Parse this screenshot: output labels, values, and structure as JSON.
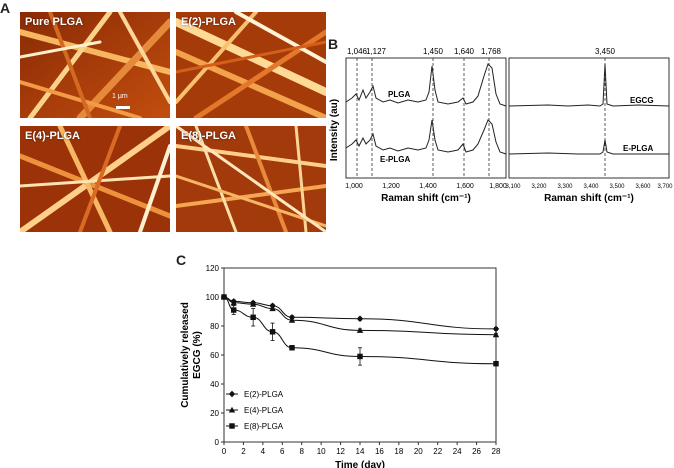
{
  "panelA": {
    "letter": "A",
    "images": [
      {
        "label": "Pure PLGA",
        "scale_bar": "1 μm"
      },
      {
        "label": "E(2)-PLGA"
      },
      {
        "label": "E(4)-PLGA"
      },
      {
        "label": "E(8)-PLGA"
      }
    ]
  },
  "panelB": {
    "letter": "B",
    "ylabel": "Intensity (au)",
    "left": {
      "xlabel": "Raman shift (cm⁻¹)",
      "ticks": [
        "1,000",
        "1,200",
        "1,400",
        "1,600",
        "1,800"
      ],
      "peaks": [
        "1,046",
        "1,127",
        "1,450",
        "1,640",
        "1,768"
      ],
      "traces": [
        "PLGA",
        "E-PLGA"
      ]
    },
    "right": {
      "xlabel": "Raman shift (cm⁻¹)",
      "ticks": [
        "3,100",
        "3,200",
        "3,300",
        "3,400",
        "3,500",
        "3,600",
        "3,700"
      ],
      "peaks": [
        "3,450"
      ],
      "traces": [
        "EGCG",
        "E-PLGA"
      ]
    }
  },
  "panelC": {
    "letter": "C"
  },
  "chart_data": {
    "type": "line",
    "title": "",
    "xlabel": "Time (day)",
    "ylabel": "Cumulatively released EGCG (%)",
    "xlim": [
      0,
      28
    ],
    "ylim": [
      0,
      120
    ],
    "xticks": [
      0,
      2,
      4,
      6,
      8,
      10,
      12,
      14,
      16,
      18,
      20,
      22,
      24,
      26,
      28
    ],
    "yticks": [
      0,
      20,
      40,
      60,
      80,
      100,
      120
    ],
    "legend_position": "left-bottom",
    "series": [
      {
        "name": "E(2)-PLGA",
        "marker": "diamond",
        "x": [
          0,
          1,
          3,
          5,
          7,
          14,
          28
        ],
        "y": [
          100,
          97,
          96,
          94,
          86,
          85,
          78
        ],
        "err": [
          0,
          1,
          1,
          1,
          1,
          1,
          1
        ]
      },
      {
        "name": "E(4)-PLGA",
        "marker": "triangle",
        "x": [
          0,
          1,
          3,
          5,
          7,
          14,
          28
        ],
        "y": [
          100,
          96,
          95,
          92,
          84,
          77,
          74
        ],
        "err": [
          0,
          1,
          1,
          1,
          1,
          1,
          1
        ]
      },
      {
        "name": "E(8)-PLGA",
        "marker": "square",
        "x": [
          0,
          1,
          3,
          5,
          7,
          14,
          28
        ],
        "y": [
          100,
          91,
          86,
          76,
          65,
          59,
          54
        ],
        "err": [
          0,
          3,
          6,
          6,
          1,
          6,
          1
        ]
      }
    ]
  }
}
